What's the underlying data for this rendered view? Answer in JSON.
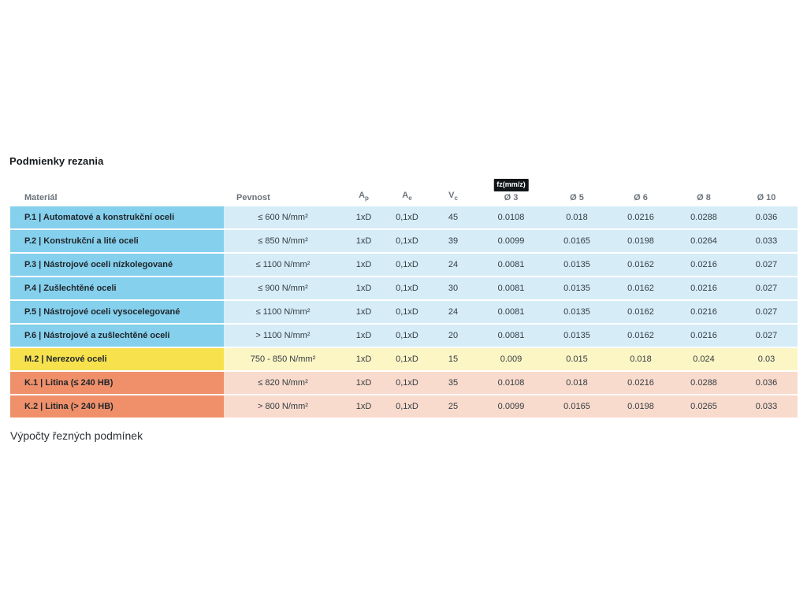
{
  "page": {
    "title": "Podmienky rezania",
    "footer_heading": "Výpočty řezných podmínek"
  },
  "table": {
    "fz_badge_label": "fz(mm/z)",
    "columns": {
      "material": "Materiál",
      "pevnost": "Pevnost",
      "ap_base": "A",
      "ap_sub": "p",
      "ae_base": "A",
      "ae_sub": "e",
      "vc_base": "V",
      "vc_sub": "c",
      "d3": "Ø 3",
      "d5": "Ø 5",
      "d6": "Ø 6",
      "d8": "Ø 8",
      "d10": "Ø 10"
    },
    "rows": [
      {
        "group": "blue",
        "material": "P.1 | Automatové a konstrukční oceli",
        "pevnost": "≤ 600 N/mm²",
        "ap": "1xD",
        "ae": "0,1xD",
        "vc": "45",
        "d3": "0.0108",
        "d5": "0.018",
        "d6": "0.0216",
        "d8": "0.0288",
        "d10": "0.036"
      },
      {
        "group": "blue",
        "material": "P.2 | Konstrukční a lité oceli",
        "pevnost": "≤ 850 N/mm²",
        "ap": "1xD",
        "ae": "0,1xD",
        "vc": "39",
        "d3": "0.0099",
        "d5": "0.0165",
        "d6": "0.0198",
        "d8": "0.0264",
        "d10": "0.033"
      },
      {
        "group": "blue",
        "material": "P.3 | Nástrojové oceli nízkolegované",
        "pevnost": "≤ 1100 N/mm²",
        "ap": "1xD",
        "ae": "0,1xD",
        "vc": "24",
        "d3": "0.0081",
        "d5": "0.0135",
        "d6": "0.0162",
        "d8": "0.0216",
        "d10": "0.027"
      },
      {
        "group": "blue",
        "material": "P.4 | Zušlechtěné oceli",
        "pevnost": "≤ 900 N/mm²",
        "ap": "1xD",
        "ae": "0,1xD",
        "vc": "30",
        "d3": "0.0081",
        "d5": "0.0135",
        "d6": "0.0162",
        "d8": "0.0216",
        "d10": "0.027"
      },
      {
        "group": "blue",
        "material": "P.5 | Nástrojové oceli vysocelegované",
        "pevnost": "≤ 1100 N/mm²",
        "ap": "1xD",
        "ae": "0,1xD",
        "vc": "24",
        "d3": "0.0081",
        "d5": "0.0135",
        "d6": "0.0162",
        "d8": "0.0216",
        "d10": "0.027"
      },
      {
        "group": "blue",
        "material": "P.6 | Nástrojové a zušlechtěné oceli",
        "pevnost": "> 1100 N/mm²",
        "ap": "1xD",
        "ae": "0,1xD",
        "vc": "20",
        "d3": "0.0081",
        "d5": "0.0135",
        "d6": "0.0162",
        "d8": "0.0216",
        "d10": "0.027"
      },
      {
        "group": "yellow",
        "material": "M.2 | Nerezové oceli",
        "pevnost": "750 - 850 N/mm²",
        "ap": "1xD",
        "ae": "0,1xD",
        "vc": "15",
        "d3": "0.009",
        "d5": "0.015",
        "d6": "0.018",
        "d8": "0.024",
        "d10": "0.03"
      },
      {
        "group": "orange",
        "material": "K.1 | Litina (≤ 240 HB)",
        "pevnost": "≤ 820 N/mm²",
        "ap": "1xD",
        "ae": "0,1xD",
        "vc": "35",
        "d3": "0.0108",
        "d5": "0.018",
        "d6": "0.0216",
        "d8": "0.0288",
        "d10": "0.036"
      },
      {
        "group": "orange",
        "material": "K.2 | Litina (> 240 HB)",
        "pevnost": "> 800 N/mm²",
        "ap": "1xD",
        "ae": "0,1xD",
        "vc": "25",
        "d3": "0.0099",
        "d5": "0.0165",
        "d6": "0.0198",
        "d8": "0.0265",
        "d10": "0.033"
      }
    ],
    "colors": {
      "blue_material": "#85d0ed",
      "blue_row": "#d6edf8",
      "yellow_material": "#f7e24e",
      "yellow_row": "#fcf6c5",
      "orange_material": "#f0906b",
      "orange_row": "#f9dbcd",
      "badge_bg": "#121517",
      "badge_text": "#ffffff",
      "header_text": "#6d747b",
      "body_text": "#343b41"
    }
  }
}
